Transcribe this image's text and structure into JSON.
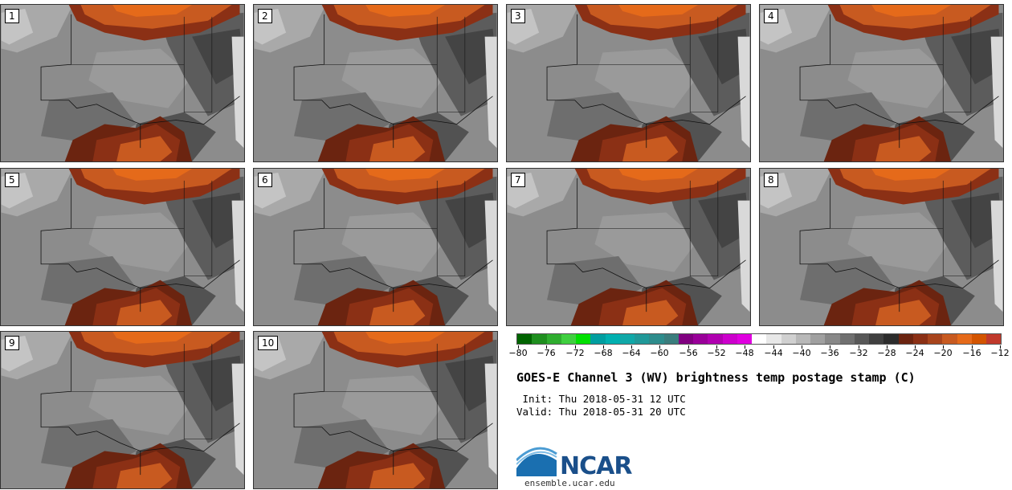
{
  "panels": [
    {
      "label": "1"
    },
    {
      "label": "2"
    },
    {
      "label": "3"
    },
    {
      "label": "4"
    },
    {
      "label": "5"
    },
    {
      "label": "6"
    },
    {
      "label": "7"
    },
    {
      "label": "8"
    },
    {
      "label": "9"
    },
    {
      "label": "10"
    }
  ],
  "colorbar": {
    "colors": [
      "#006400",
      "#1f8f1f",
      "#2fad2f",
      "#3fcf3f",
      "#00e000",
      "#009ea0",
      "#00b0b0",
      "#10a8a8",
      "#209999",
      "#2d8c8c",
      "#3a7d7d",
      "#800080",
      "#990099",
      "#b000b0",
      "#cc00cc",
      "#e000e0",
      "#ffffff",
      "#e8e8e8",
      "#d0d0d0",
      "#b8b8b8",
      "#a0a0a0",
      "#888888",
      "#707070",
      "#585858",
      "#404040",
      "#2c2c2c",
      "#6b2410",
      "#8b3015",
      "#a8441c",
      "#c85a20",
      "#e56a1a",
      "#d35400",
      "#c0392b"
    ],
    "ticks": [
      "−80",
      "−76",
      "−72",
      "−68",
      "−64",
      "−60",
      "−56",
      "−52",
      "−48",
      "−44",
      "−40",
      "−36",
      "−32",
      "−28",
      "−24",
      "−20",
      "−16",
      "−12"
    ]
  },
  "title": "GOES-E Channel 3 (WV) brightness temp postage stamp (C)",
  "init": " Init: Thu 2018-05-31 12 UTC",
  "valid": "Valid: Thu 2018-05-31 20 UTC",
  "logo_text": "NCAR",
  "site": "ensemble.ucar.edu"
}
